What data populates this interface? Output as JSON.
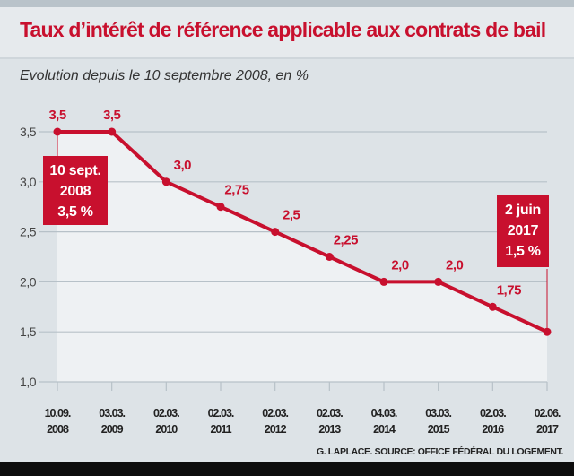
{
  "title": "Taux d’intérêt de référence applicable aux contrats de bail",
  "subtitle": "Evolution depuis le 10 septembre 2008, en %",
  "credit": "G. LAPLACE. SOURCE: OFFICE FÉDÉRAL DU LOGEMENT.",
  "colors": {
    "accent": "#c8102e",
    "background": "#dde3e7",
    "plot_fill": "#eef1f3"
  },
  "chart_data": {
    "type": "line",
    "title": "Taux d’intérêt de référence applicable aux contrats de bail",
    "subtitle": "Evolution depuis le 10 septembre 2008, en %",
    "categories": [
      [
        "10.09.",
        "2008"
      ],
      [
        "03.03.",
        "2009"
      ],
      [
        "02.03.",
        "2010"
      ],
      [
        "02.03.",
        "2011"
      ],
      [
        "02.03.",
        "2012"
      ],
      [
        "02.03.",
        "2013"
      ],
      [
        "04.03.",
        "2014"
      ],
      [
        "03.03.",
        "2015"
      ],
      [
        "02.03.",
        "2016"
      ],
      [
        "02.06.",
        "2017"
      ]
    ],
    "values": [
      3.5,
      3.5,
      3.0,
      2.75,
      2.5,
      2.25,
      2.0,
      2.0,
      1.75,
      1.5
    ],
    "data_labels": [
      "3,5",
      "3,5",
      "3,0",
      "2,75",
      "2,5",
      "2,25",
      "2,0",
      "2,0",
      "1,75",
      ""
    ],
    "yticks": [
      "1,0",
      "1,5",
      "2,0",
      "2,5",
      "3,0",
      "3,5"
    ],
    "ytick_values": [
      1.0,
      1.5,
      2.0,
      2.5,
      3.0,
      3.5
    ],
    "ylim": [
      1.0,
      3.5
    ],
    "grid": true,
    "annotations": [
      {
        "point": 0,
        "lines": [
          "10 sept.",
          "2008",
          "3,5 %"
        ]
      },
      {
        "point": 9,
        "lines": [
          "2 juin",
          "2017",
          "1,5 %"
        ]
      }
    ]
  }
}
